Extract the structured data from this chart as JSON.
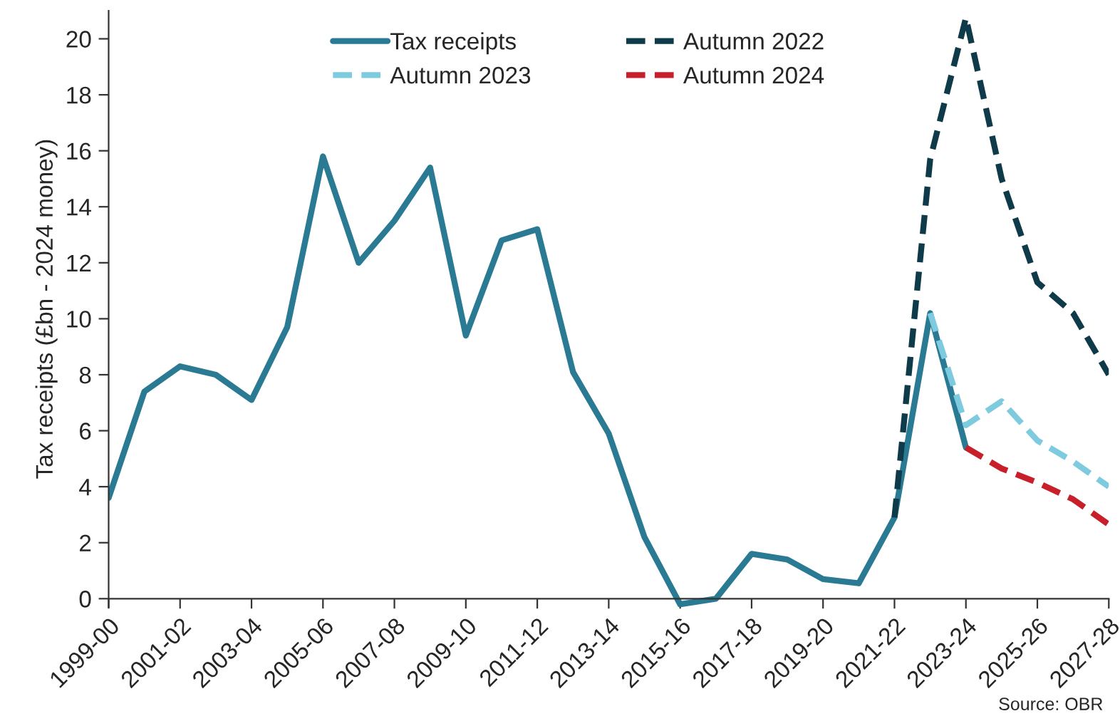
{
  "chart_data": {
    "type": "line",
    "ylabel": "Tax receipts (£bn - 2024 money)",
    "categories": [
      "1999-00",
      null,
      "2001-02",
      null,
      "2003-04",
      null,
      "2005-06",
      null,
      "2007-08",
      null,
      "2009-10",
      null,
      "2011-12",
      null,
      "2013-14",
      null,
      "2015-16",
      null,
      "2017-18",
      null,
      "2019-20",
      null,
      "2021-22",
      null,
      "2023-24",
      null,
      "2025-26",
      null,
      "2027-28"
    ],
    "series": [
      {
        "name": "Tax receipts",
        "color": "#2b7a94",
        "line_style": "solid",
        "values": [
          3.6,
          7.4,
          8.3,
          8.0,
          7.1,
          9.7,
          15.8,
          12.0,
          13.5,
          15.4,
          9.4,
          12.8,
          13.2,
          8.1,
          5.9,
          2.2,
          -0.2,
          0.0,
          1.6,
          1.4,
          0.7,
          0.55,
          2.9,
          10.2,
          5.4,
          null,
          null,
          null,
          null
        ]
      },
      {
        "name": "Autumn 2022",
        "color": "#0f3a4a",
        "line_style": "dashed",
        "values": [
          null,
          null,
          null,
          null,
          null,
          null,
          null,
          null,
          null,
          null,
          null,
          null,
          null,
          null,
          null,
          null,
          null,
          null,
          null,
          null,
          null,
          null,
          2.9,
          15.7,
          20.75,
          15.0,
          11.3,
          10.2,
          8.0
        ]
      },
      {
        "name": "Autumn 2023",
        "color": "#7ecbe0",
        "line_style": "dashed",
        "values": [
          null,
          null,
          null,
          null,
          null,
          null,
          null,
          null,
          null,
          null,
          null,
          null,
          null,
          null,
          null,
          null,
          null,
          null,
          null,
          null,
          null,
          null,
          null,
          10.2,
          6.2,
          7.05,
          5.65,
          4.9,
          4.0
        ]
      },
      {
        "name": "Autumn 2024",
        "color": "#c8202a",
        "line_style": "dashed",
        "values": [
          null,
          null,
          null,
          null,
          null,
          null,
          null,
          null,
          null,
          null,
          null,
          null,
          null,
          null,
          null,
          null,
          null,
          null,
          null,
          null,
          null,
          null,
          null,
          null,
          5.4,
          4.65,
          4.15,
          3.55,
          2.65
        ]
      }
    ],
    "ylim": [
      -0.3,
      21
    ],
    "yticks": [
      0,
      2,
      4,
      6,
      8,
      10,
      12,
      14,
      16,
      18,
      20
    ],
    "grid": false,
    "legend": "top",
    "annotations": [
      "Source: OBR"
    ]
  }
}
